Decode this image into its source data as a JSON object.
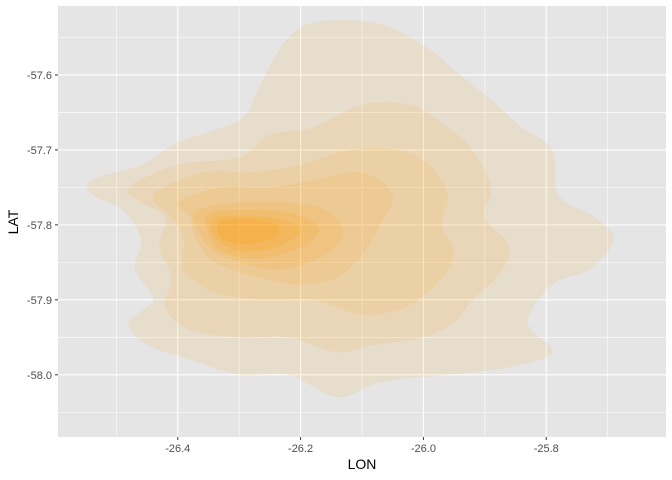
{
  "chart_data": {
    "type": "density_2d_filled",
    "title": "",
    "xlabel": "LON",
    "ylabel": "LAT",
    "xlim": [
      -26.595,
      -25.605
    ],
    "ylim": [
      -58.083,
      -57.508
    ],
    "x_ticks": [
      -26.4,
      -26.2,
      -26.0,
      -25.8
    ],
    "x_tick_labels": [
      "-26.4",
      "-26.2",
      "-26.0",
      "-25.8"
    ],
    "y_ticks": [
      -57.6,
      -57.7,
      -57.8,
      -57.9,
      -58.0
    ],
    "y_tick_labels": [
      "-57.6",
      "-57.7",
      "-57.8",
      "-57.9",
      "-58.0"
    ],
    "grid": true,
    "legend": "none",
    "fill_color": "#ff9900",
    "panel_background": "#e5e5e5",
    "grid_color": "#ffffff",
    "levels": [
      {
        "level": 1,
        "alpha": 0.1,
        "polygon": [
          [
            -26.54,
            -57.74
          ],
          [
            -26.46,
            -57.72
          ],
          [
            -26.4,
            -57.69
          ],
          [
            -26.3,
            -57.66
          ],
          [
            -26.27,
            -57.62
          ],
          [
            -26.23,
            -57.56
          ],
          [
            -26.18,
            -57.53
          ],
          [
            -26.08,
            -57.53
          ],
          [
            -26.0,
            -57.56
          ],
          [
            -25.94,
            -57.6
          ],
          [
            -25.88,
            -57.64
          ],
          [
            -25.84,
            -57.67
          ],
          [
            -25.79,
            -57.7
          ],
          [
            -25.78,
            -57.76
          ],
          [
            -25.72,
            -57.79
          ],
          [
            -25.69,
            -57.82
          ],
          [
            -25.73,
            -57.86
          ],
          [
            -25.79,
            -57.88
          ],
          [
            -25.83,
            -57.93
          ],
          [
            -25.79,
            -57.97
          ],
          [
            -25.86,
            -57.99
          ],
          [
            -25.96,
            -58.0
          ],
          [
            -26.07,
            -58.01
          ],
          [
            -26.14,
            -58.03
          ],
          [
            -26.22,
            -58.0
          ],
          [
            -26.3,
            -58.0
          ],
          [
            -26.38,
            -57.98
          ],
          [
            -26.45,
            -57.96
          ],
          [
            -26.48,
            -57.93
          ],
          [
            -26.44,
            -57.9
          ],
          [
            -26.47,
            -57.86
          ],
          [
            -26.46,
            -57.82
          ],
          [
            -26.49,
            -57.78
          ],
          [
            -26.54,
            -57.76
          ]
        ]
      },
      {
        "level": 2,
        "alpha": 0.1,
        "polygon": [
          [
            -26.48,
            -57.75
          ],
          [
            -26.4,
            -57.72
          ],
          [
            -26.3,
            -57.71
          ],
          [
            -26.25,
            -57.68
          ],
          [
            -26.18,
            -57.67
          ],
          [
            -26.1,
            -57.64
          ],
          [
            -26.02,
            -57.64
          ],
          [
            -25.96,
            -57.67
          ],
          [
            -25.92,
            -57.7
          ],
          [
            -25.89,
            -57.75
          ],
          [
            -25.9,
            -57.79
          ],
          [
            -25.86,
            -57.83
          ],
          [
            -25.88,
            -57.87
          ],
          [
            -25.92,
            -57.9
          ],
          [
            -25.95,
            -57.93
          ],
          [
            -26.0,
            -57.95
          ],
          [
            -26.08,
            -57.96
          ],
          [
            -26.14,
            -57.97
          ],
          [
            -26.22,
            -57.95
          ],
          [
            -26.3,
            -57.95
          ],
          [
            -26.38,
            -57.94
          ],
          [
            -26.42,
            -57.91
          ],
          [
            -26.41,
            -57.87
          ],
          [
            -26.43,
            -57.83
          ],
          [
            -26.42,
            -57.79
          ],
          [
            -26.46,
            -57.77
          ]
        ]
      },
      {
        "level": 3,
        "alpha": 0.1,
        "polygon": [
          [
            -26.44,
            -57.76
          ],
          [
            -26.36,
            -57.73
          ],
          [
            -26.28,
            -57.73
          ],
          [
            -26.2,
            -57.72
          ],
          [
            -26.12,
            -57.7
          ],
          [
            -26.04,
            -57.7
          ],
          [
            -25.99,
            -57.72
          ],
          [
            -25.96,
            -57.76
          ],
          [
            -25.97,
            -57.8
          ],
          [
            -25.95,
            -57.84
          ],
          [
            -25.98,
            -57.88
          ],
          [
            -26.03,
            -57.91
          ],
          [
            -26.1,
            -57.92
          ],
          [
            -26.18,
            -57.9
          ],
          [
            -26.26,
            -57.9
          ],
          [
            -26.34,
            -57.89
          ],
          [
            -26.39,
            -57.86
          ],
          [
            -26.39,
            -57.82
          ],
          [
            -26.41,
            -57.79
          ]
        ]
      },
      {
        "level": 4,
        "alpha": 0.1,
        "polygon": [
          [
            -26.4,
            -57.77
          ],
          [
            -26.33,
            -57.75
          ],
          [
            -26.25,
            -57.75
          ],
          [
            -26.18,
            -57.74
          ],
          [
            -26.1,
            -57.73
          ],
          [
            -26.05,
            -57.76
          ],
          [
            -26.07,
            -57.8
          ],
          [
            -26.1,
            -57.84
          ],
          [
            -26.14,
            -57.87
          ],
          [
            -26.2,
            -57.88
          ],
          [
            -26.27,
            -57.87
          ],
          [
            -26.34,
            -57.85
          ],
          [
            -26.37,
            -57.82
          ],
          [
            -26.38,
            -57.79
          ]
        ]
      },
      {
        "level": 5,
        "alpha": 0.12,
        "polygon": [
          [
            -26.37,
            -57.78
          ],
          [
            -26.3,
            -57.77
          ],
          [
            -26.22,
            -57.77
          ],
          [
            -26.16,
            -57.78
          ],
          [
            -26.13,
            -57.81
          ],
          [
            -26.16,
            -57.84
          ],
          [
            -26.23,
            -57.86
          ],
          [
            -26.3,
            -57.85
          ],
          [
            -26.35,
            -57.83
          ],
          [
            -26.37,
            -57.8
          ]
        ]
      },
      {
        "level": 6,
        "alpha": 0.14,
        "polygon": [
          [
            -26.35,
            -57.785
          ],
          [
            -26.28,
            -57.78
          ],
          [
            -26.21,
            -57.785
          ],
          [
            -26.17,
            -57.805
          ],
          [
            -26.2,
            -57.83
          ],
          [
            -26.27,
            -57.845
          ],
          [
            -26.33,
            -57.835
          ],
          [
            -26.35,
            -57.81
          ]
        ]
      },
      {
        "level": 7,
        "alpha": 0.16,
        "polygon": [
          [
            -26.34,
            -57.79
          ],
          [
            -26.28,
            -57.788
          ],
          [
            -26.22,
            -57.795
          ],
          [
            -26.2,
            -57.81
          ],
          [
            -26.24,
            -57.83
          ],
          [
            -26.3,
            -57.835
          ],
          [
            -26.335,
            -57.82
          ],
          [
            -26.345,
            -57.805
          ]
        ]
      },
      {
        "level": 8,
        "alpha": 0.18,
        "polygon": [
          [
            -26.33,
            -57.795
          ],
          [
            -26.28,
            -57.792
          ],
          [
            -26.24,
            -57.8
          ],
          [
            -26.24,
            -57.815
          ],
          [
            -26.28,
            -57.825
          ],
          [
            -26.32,
            -57.822
          ],
          [
            -26.335,
            -57.81
          ]
        ]
      }
    ]
  }
}
